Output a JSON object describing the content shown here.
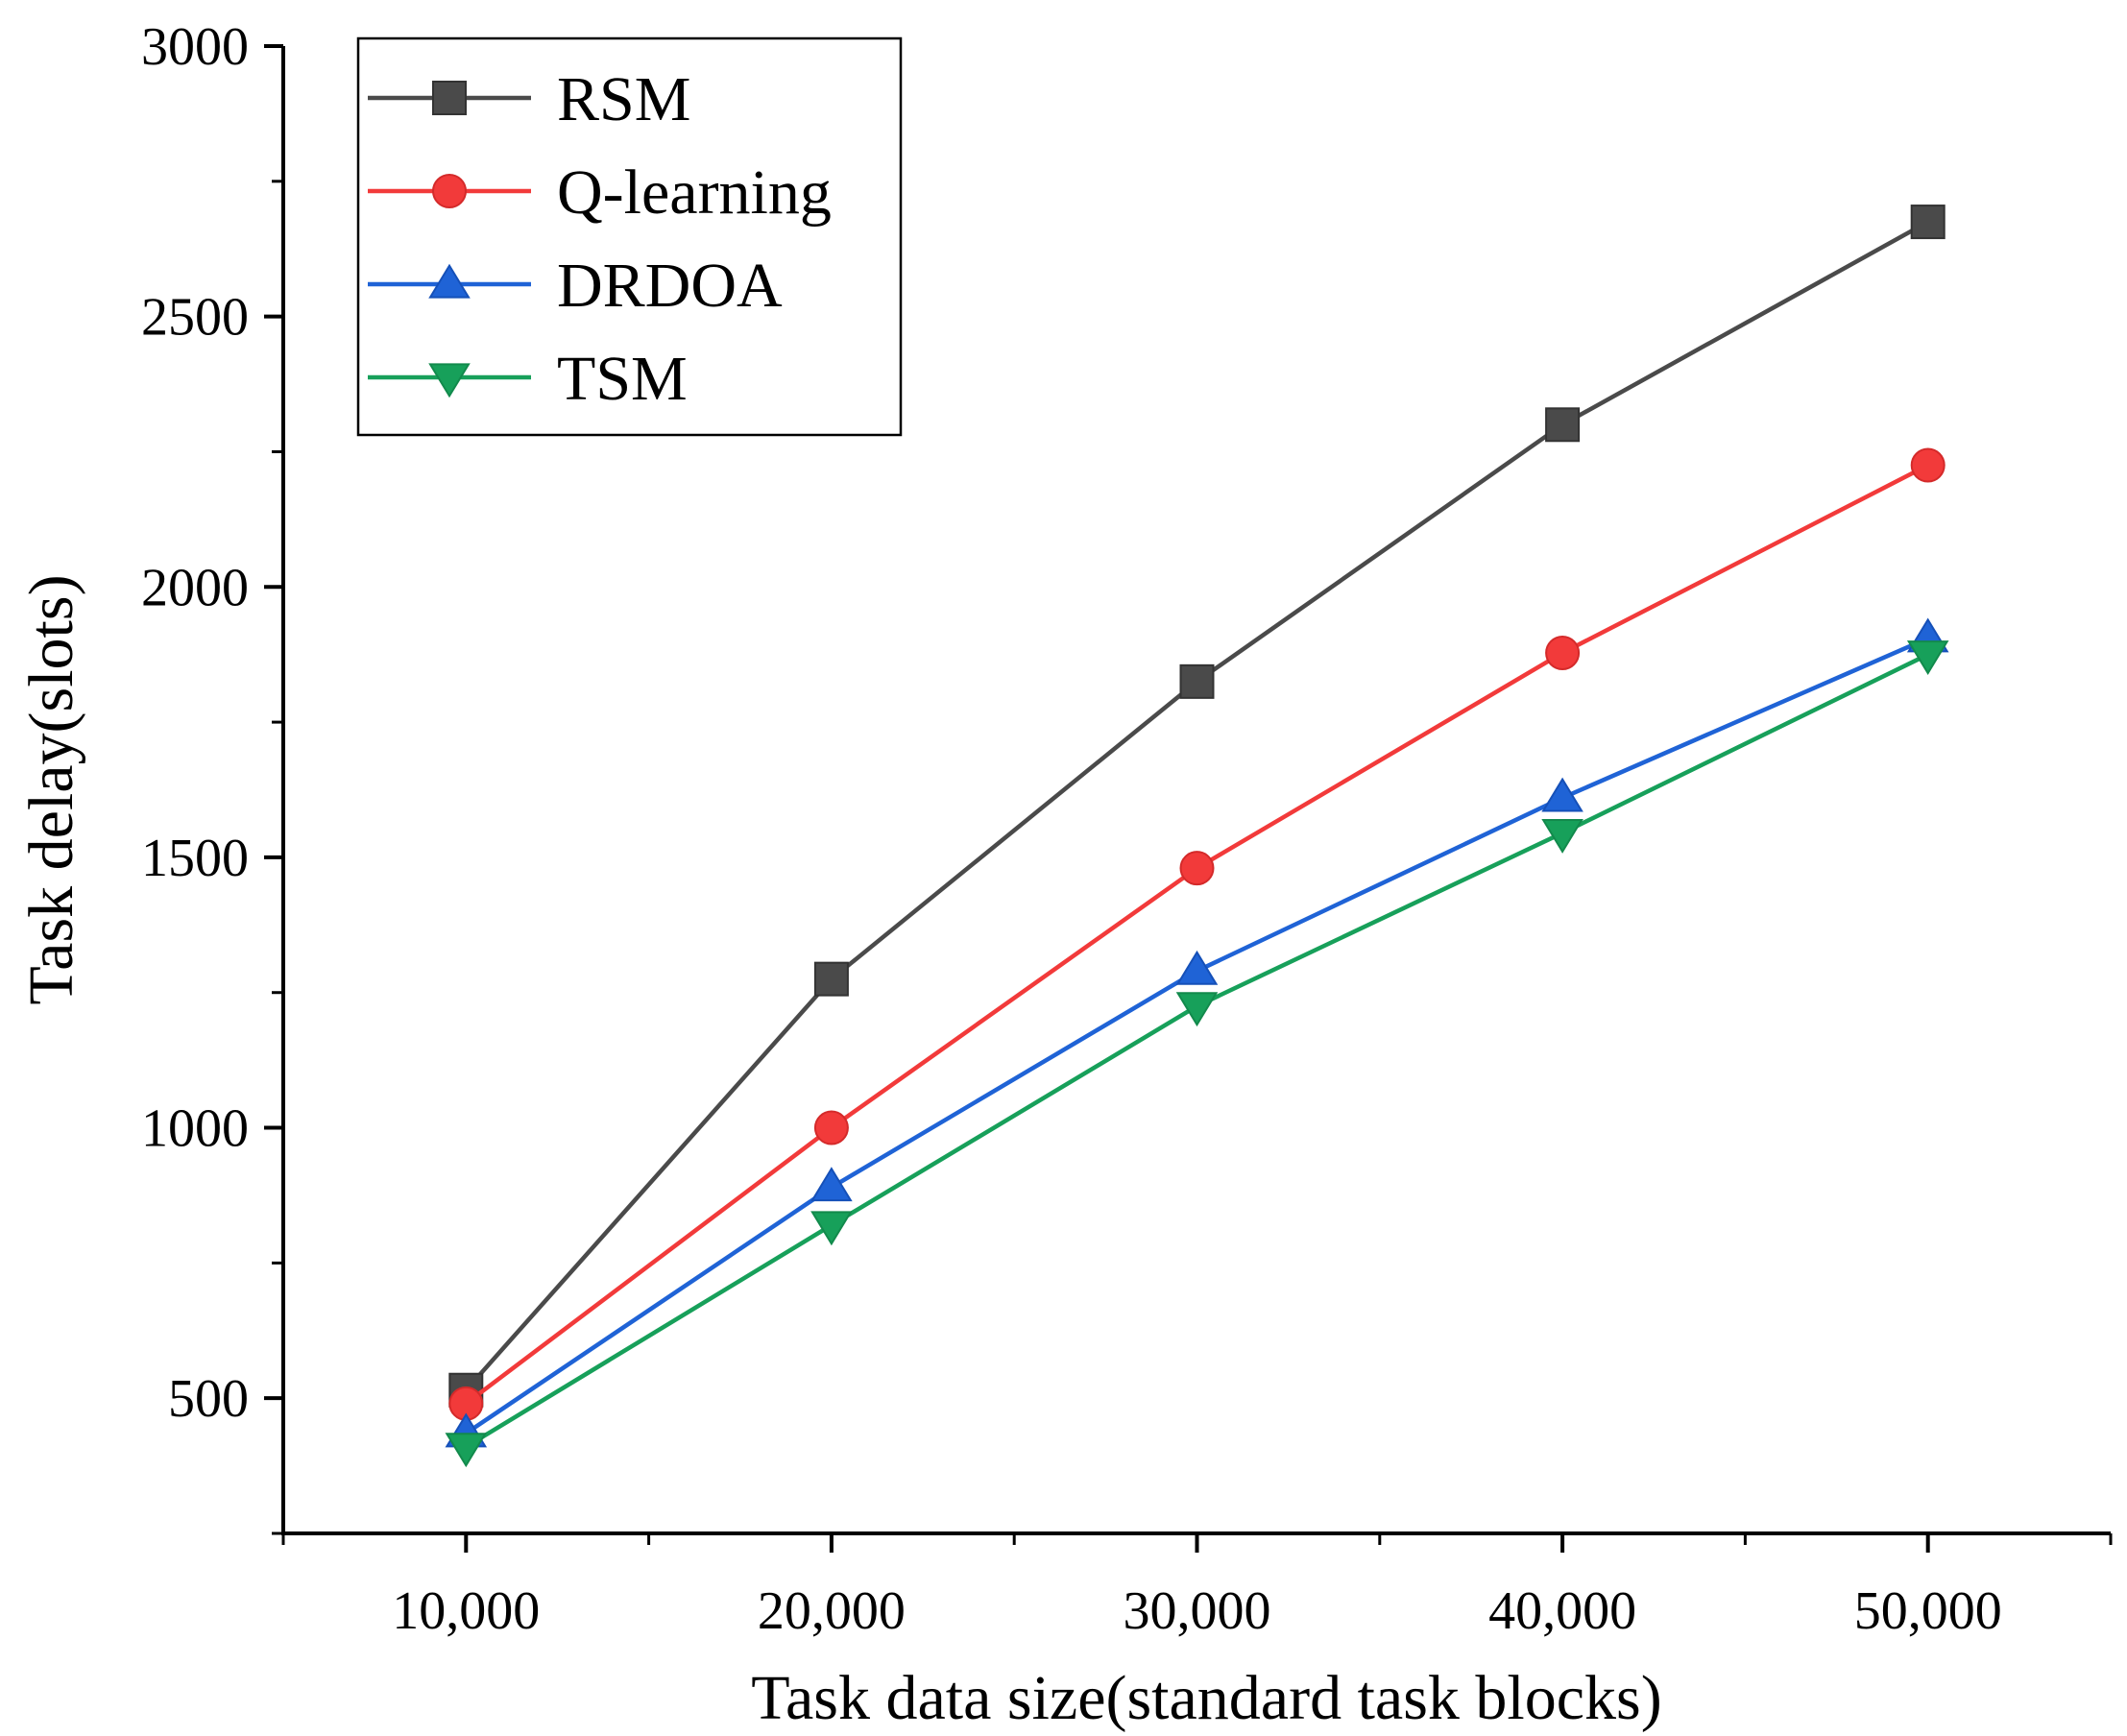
{
  "chart_data": {
    "type": "line",
    "title": "",
    "xlabel": "Task data size(standard task blocks)",
    "ylabel": "Task delay(slots)",
    "x": [
      10000,
      20000,
      30000,
      40000,
      50000
    ],
    "x_tick_labels": [
      "10,000",
      "20,000",
      "30,000",
      "40,000",
      "50,000"
    ],
    "xlim": [
      5000,
      55000
    ],
    "ylim": [
      250,
      3000
    ],
    "y_ticks": [
      500,
      1000,
      1500,
      2000,
      2500,
      3000
    ],
    "y_tick_labels": [
      "500",
      "1000",
      "1500",
      "2000",
      "2500",
      "3000"
    ],
    "grid": false,
    "legend_position": "top-left",
    "series": [
      {
        "name": "RSM",
        "marker": "square",
        "color": "#4a4a4a",
        "values": [
          515,
          1275,
          1825,
          2300,
          2675
        ]
      },
      {
        "name": "Q-learning",
        "marker": "circle",
        "color": "#f23a3a",
        "values": [
          490,
          1000,
          1480,
          1878,
          2225
        ]
      },
      {
        "name": "DRDOA",
        "marker": "triangle-up",
        "color": "#1f63d6",
        "values": [
          435,
          890,
          1290,
          1610,
          1905
        ]
      },
      {
        "name": "TSM",
        "marker": "triangle-down",
        "color": "#17a05a",
        "values": [
          410,
          820,
          1225,
          1545,
          1875
        ]
      }
    ]
  }
}
